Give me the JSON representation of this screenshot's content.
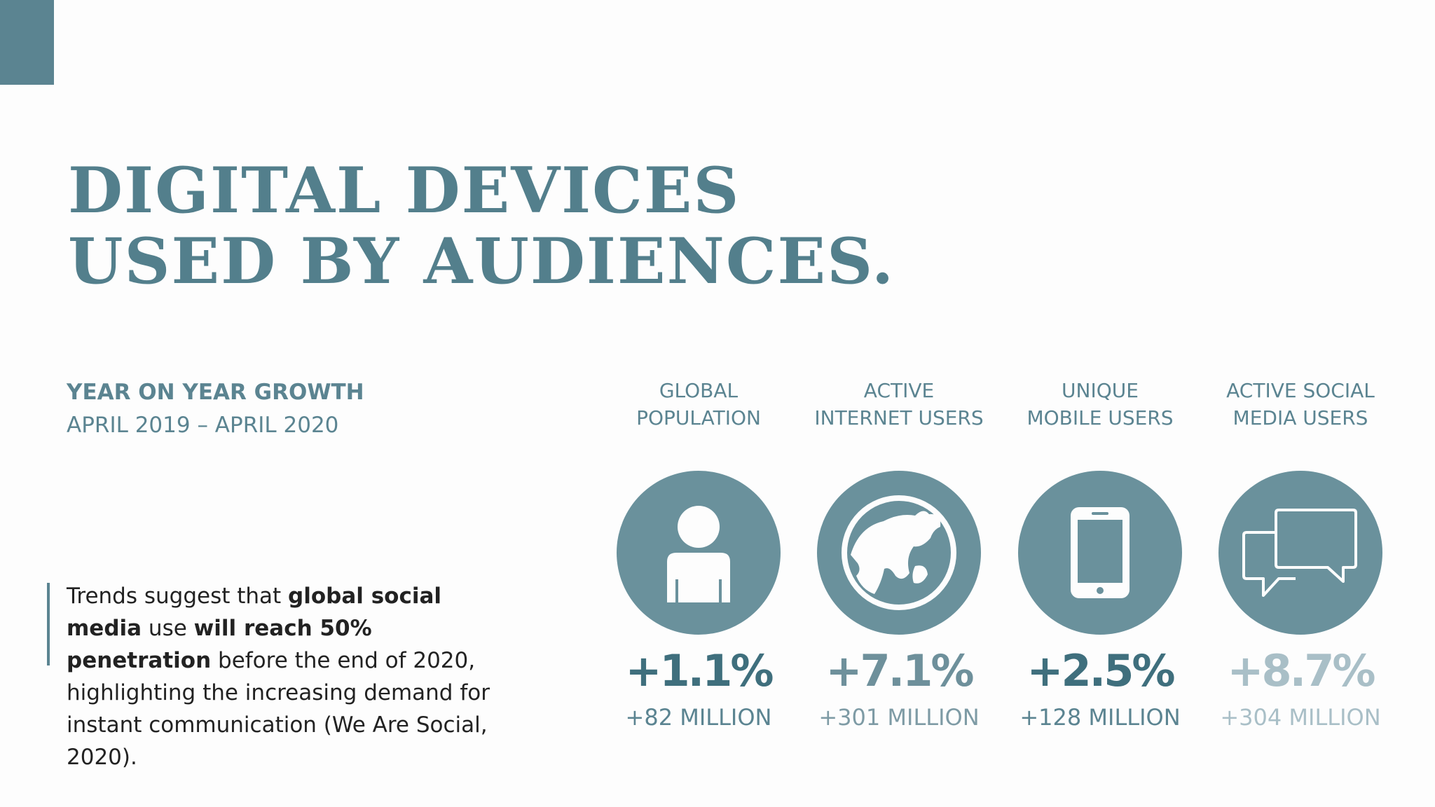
{
  "title": {
    "line1": "DIGITAL DEVICES",
    "line2": "USED BY AUDIENCES."
  },
  "growth": {
    "heading": "YEAR ON YEAR GROWTH",
    "period": "APRIL 2019 – APRIL 2020"
  },
  "quote": {
    "p1": "Trends suggest that ",
    "b1": "global social media",
    "p2": " use ",
    "b2": "will reach 50% penetration",
    "p3": " before the end of 2020, highlighting the increasing demand for instant communication (We Are Social, 2020)."
  },
  "stats": [
    {
      "label1": "GLOBAL",
      "label2": "POPULATION",
      "icon": "person-icon",
      "percent": "+1.1%",
      "absolute": "+82 MILLION"
    },
    {
      "label1": "ACTIVE",
      "label2": "INTERNET USERS",
      "icon": "globe-icon",
      "percent": "+7.1%",
      "absolute": "+301 MILLION"
    },
    {
      "label1": "UNIQUE",
      "label2": "MOBILE USERS",
      "icon": "mobile-phone-icon",
      "percent": "+2.5%",
      "absolute": "+128 MILLION"
    },
    {
      "label1": "ACTIVE SOCIAL",
      "label2": "MEDIA USERS",
      "icon": "chat-bubbles-icon",
      "percent": "+8.7%",
      "absolute": "+304 MILLION"
    }
  ],
  "colors": {
    "accent": "#5b8491",
    "circle": "#6a919c",
    "dark_text": "#222222"
  }
}
